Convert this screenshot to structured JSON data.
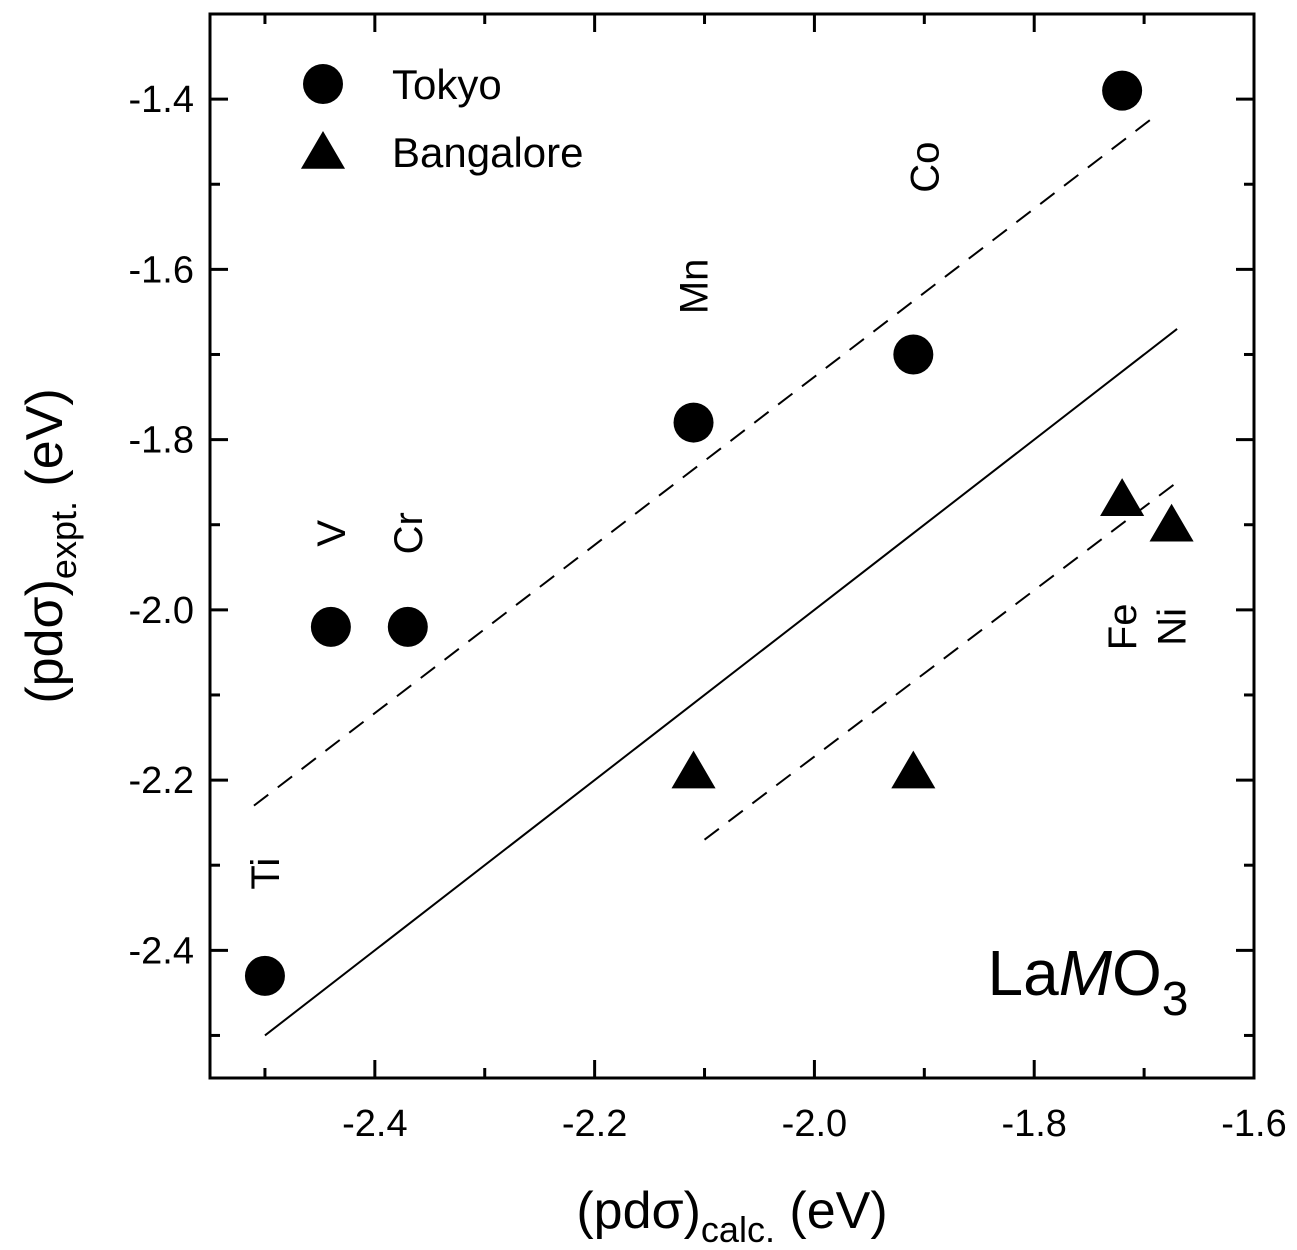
{
  "chart_data": {
    "type": "scatter",
    "xlim": [
      -2.55,
      -1.6
    ],
    "ylim": [
      -2.55,
      -1.3
    ],
    "x_major_ticks": [
      -2.4,
      -2.2,
      -2.0,
      -1.8,
      -1.6
    ],
    "x_minor_ticks": [
      -2.5,
      -2.3,
      -2.1,
      -1.9,
      -1.7
    ],
    "y_major_ticks": [
      -2.4,
      -2.2,
      -2.0,
      -1.8,
      -1.6,
      -1.4
    ],
    "y_minor_ticks": [
      -2.5,
      -2.3,
      -2.1,
      -1.9,
      -1.7,
      -1.5
    ],
    "x_tick_labels": [
      "-2.4",
      "-2.2",
      "-2.0",
      "-1.8",
      "-1.6"
    ],
    "y_tick_labels": [
      "-2.4",
      "-2.2",
      "-2.0",
      "-1.8",
      "-1.6",
      "-1.4"
    ],
    "xlabel": {
      "main": "(pdσ)",
      "sub": "calc.",
      "tail": " (eV)"
    },
    "ylabel": {
      "main": "(pdσ)",
      "sub": "expt.",
      "tail": " (eV)"
    },
    "grid": false,
    "legend_position": "top-left",
    "series": [
      {
        "name": "Tokyo",
        "marker": "circle",
        "points": [
          {
            "x": -2.5,
            "y": -2.43
          },
          {
            "x": -2.44,
            "y": -2.02
          },
          {
            "x": -2.37,
            "y": -2.02
          },
          {
            "x": -2.11,
            "y": -1.78
          },
          {
            "x": -1.91,
            "y": -1.7
          },
          {
            "x": -1.72,
            "y": -1.39
          }
        ]
      },
      {
        "name": "Bangalore",
        "marker": "triangle",
        "points": [
          {
            "x": -2.11,
            "y": -2.19
          },
          {
            "x": -1.91,
            "y": -2.19
          },
          {
            "x": -1.72,
            "y": -1.87
          },
          {
            "x": -1.675,
            "y": -1.9
          }
        ]
      }
    ],
    "lines": [
      {
        "style": "solid",
        "from": {
          "x": -2.5,
          "y": -2.5
        },
        "to": {
          "x": -1.67,
          "y": -1.67
        }
      },
      {
        "style": "dashed",
        "from": {
          "x": -2.51,
          "y": -2.23
        },
        "to": {
          "x": -1.69,
          "y": -1.42
        }
      },
      {
        "style": "dashed",
        "from": {
          "x": -2.1,
          "y": -2.27
        },
        "to": {
          "x": -1.67,
          "y": -1.85
        }
      }
    ],
    "point_labels": [
      {
        "text": "Ti",
        "x": -2.5,
        "y": -2.31
      },
      {
        "text": "V",
        "x": -2.44,
        "y": -1.91
      },
      {
        "text": "Cr",
        "x": -2.37,
        "y": -1.91
      },
      {
        "text": "Mn",
        "x": -2.11,
        "y": -1.62
      },
      {
        "text": "Co",
        "x": -1.9,
        "y": -1.48
      },
      {
        "text": "Fe",
        "x": -1.72,
        "y": -2.02
      },
      {
        "text": "Ni",
        "x": -1.675,
        "y": -2.02
      }
    ],
    "annotation": {
      "prefix": "La",
      "italic": "M",
      "mid": "O",
      "sub": "3"
    }
  }
}
